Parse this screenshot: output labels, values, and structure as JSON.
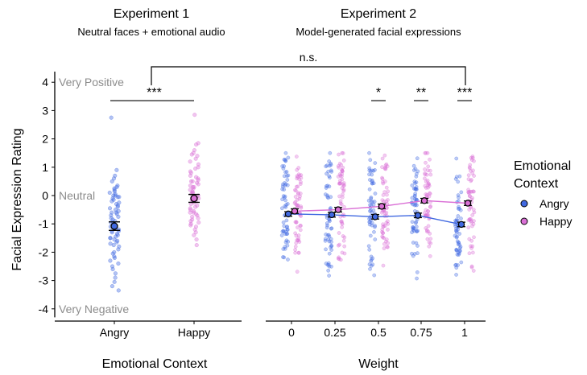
{
  "chart_data": [
    {
      "type": "scatter",
      "title": "Experiment 1",
      "subtitle": "Neutral faces + emotional audio",
      "xlabel": "Emotional Context",
      "ylabel": "Facial Expression Rating",
      "categories": [
        "Angry",
        "Happy"
      ],
      "ylim": [
        -4.3,
        4.3
      ],
      "yticks": [
        -4,
        -3,
        -2,
        -1,
        0,
        1,
        2,
        3,
        4
      ],
      "scale_labels": [
        {
          "y": 4,
          "text": "Very Positive"
        },
        {
          "y": 0,
          "text": "Neutral"
        },
        {
          "y": -4,
          "text": "Very Negative"
        }
      ],
      "series": [
        {
          "name": "Angry",
          "category": "Angry",
          "mean": -1.08,
          "se": 0.15,
          "points": [
            2.75,
            0.9,
            0.7,
            0.6,
            0.5,
            0.35,
            0.3,
            0.25,
            0.2,
            0.15,
            0.1,
            0.05,
            0,
            0,
            -0.05,
            -0.1,
            -0.15,
            -0.2,
            -0.25,
            -0.3,
            -0.35,
            -0.4,
            -0.45,
            -0.5,
            -0.55,
            -0.6,
            -0.65,
            -0.7,
            -0.75,
            -0.8,
            -0.85,
            -0.9,
            -0.95,
            -1.0,
            -1.05,
            -1.1,
            -1.15,
            -1.2,
            -1.25,
            -1.3,
            -1.35,
            -1.4,
            -1.45,
            -1.5,
            -1.55,
            -1.6,
            -1.65,
            -1.7,
            -1.75,
            -1.8,
            -1.9,
            -2.0,
            -2.05,
            -2.15,
            -2.3,
            -2.4,
            -2.5,
            -2.6,
            -2.75,
            -2.9,
            -3.05,
            -3.2,
            -3.35,
            -1.25,
            -0.95,
            -0.6,
            -1.5,
            -0.05,
            -2.2,
            -1.1
          ]
        },
        {
          "name": "Happy",
          "category": "Happy",
          "mean": -0.1,
          "se": 0.14,
          "points": [
            2.85,
            1.85,
            1.8,
            1.6,
            1.5,
            1.4,
            1.3,
            1.2,
            1.1,
            1.0,
            0.95,
            0.85,
            0.8,
            0.7,
            0.65,
            0.6,
            0.55,
            0.5,
            0.45,
            0.4,
            0.35,
            0.3,
            0.25,
            0.2,
            0.15,
            0.1,
            0.05,
            0,
            -0.05,
            -0.1,
            -0.15,
            -0.2,
            -0.25,
            -0.3,
            -0.35,
            -0.4,
            -0.45,
            -0.5,
            -0.55,
            -0.6,
            -0.65,
            -0.7,
            -0.75,
            -0.8,
            -0.85,
            -0.9,
            -0.95,
            -1.0,
            -1.05,
            -1.1,
            -1.2,
            -1.3,
            -1.4,
            -1.55,
            -1.75,
            0.3,
            -0.2,
            0.5,
            -0.6,
            0.1,
            1.45
          ]
        }
      ],
      "annotations": [
        {
          "from": "Angry",
          "to": "Happy",
          "y": 3.35,
          "text": "***"
        }
      ]
    },
    {
      "type": "line",
      "title": "Experiment 2",
      "subtitle": "Model-generated facial expressions",
      "xlabel": "Weight",
      "x": [
        "0",
        "0.25",
        "0.5",
        "0.75",
        "1"
      ],
      "ylim": [
        -4.3,
        4.3
      ],
      "legend": {
        "title": "Emotional\nContext",
        "position": "right"
      },
      "series": [
        {
          "name": "Angry",
          "color": "#4169e1",
          "values": [
            -0.65,
            -0.68,
            -0.75,
            -0.7,
            -1.02
          ],
          "se": [
            0.08,
            0.08,
            0.08,
            0.08,
            0.08
          ]
        },
        {
          "name": "Happy",
          "color": "#da70d6",
          "values": [
            -0.55,
            -0.5,
            -0.38,
            -0.18,
            -0.27
          ],
          "se": [
            0.08,
            0.08,
            0.08,
            0.08,
            0.08
          ]
        }
      ],
      "annotations": [
        {
          "x": "0.5",
          "y": 3.35,
          "text": "*"
        },
        {
          "x": "0.75",
          "y": 3.35,
          "text": "**"
        },
        {
          "x": "1",
          "y": 3.35,
          "text": "***"
        }
      ]
    }
  ],
  "comparison": {
    "text": "n.s.",
    "y": 4.6
  }
}
